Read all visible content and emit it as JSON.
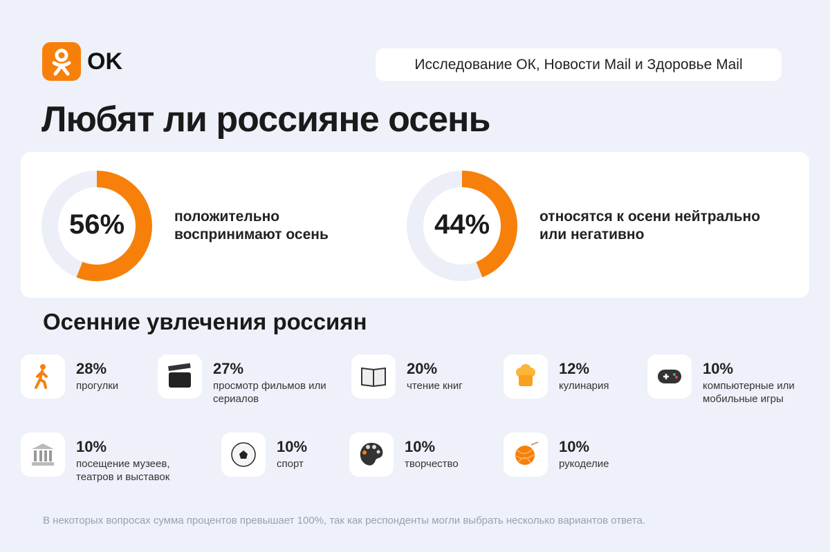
{
  "brand": {
    "name": "OK",
    "color": "#f7800a"
  },
  "source": "Исследование ОК, Новости Mail и Здоровье Mail",
  "title": "Любят ли россияне осень",
  "subtitle": "Осенние увлечения россиян",
  "footnote": "В некоторых вопросах сумма процентов превышает 100%, так как респонденты могли выбрать несколько вариантов ответа.",
  "chart_data": [
    {
      "type": "pie",
      "variant": "donut",
      "value": 56,
      "value_label": "56%",
      "label": "положительно воспринимают осень",
      "colors": {
        "fill": "#f7800a",
        "track": "#eceef8"
      }
    },
    {
      "type": "pie",
      "variant": "donut",
      "value": 44,
      "value_label": "44%",
      "label": "относятся к осени нейтрально или негативно",
      "colors": {
        "fill": "#f7800a",
        "track": "#eceef8"
      }
    },
    {
      "type": "table",
      "title": "Осенние увлечения россиян",
      "items": [
        {
          "value_label": "28%",
          "value": 28,
          "label": "прогулки",
          "icon": "walking-person-icon"
        },
        {
          "value_label": "27%",
          "value": 27,
          "label": "просмотр фильмов или сериалов",
          "icon": "clapperboard-icon"
        },
        {
          "value_label": "20%",
          "value": 20,
          "label": "чтение книг",
          "icon": "open-book-icon"
        },
        {
          "value_label": "12%",
          "value": 12,
          "label": "кулинария",
          "icon": "chef-hat-icon"
        },
        {
          "value_label": "10%",
          "value": 10,
          "label": "компьютерные или мобильные игры",
          "icon": "gamepad-icon"
        },
        {
          "value_label": "10%",
          "value": 10,
          "label": "посещение музеев, театров и выставок",
          "icon": "museum-icon"
        },
        {
          "value_label": "10%",
          "value": 10,
          "label": "спорт",
          "icon": "soccer-ball-icon"
        },
        {
          "value_label": "10%",
          "value": 10,
          "label": "творчество",
          "icon": "palette-icon"
        },
        {
          "value_label": "10%",
          "value": 10,
          "label": "рукоделие",
          "icon": "yarn-ball-icon"
        }
      ]
    }
  ]
}
